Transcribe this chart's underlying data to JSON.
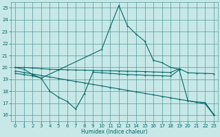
{
  "bg_color": "#c8e8e8",
  "grid_color": "#4d9999",
  "line_color": "#006666",
  "xlabel": "Humidex (Indice chaleur)",
  "xlim": [
    -0.5,
    23.5
  ],
  "ylim": [
    15.5,
    25.5
  ],
  "yticks": [
    16,
    17,
    18,
    19,
    20,
    21,
    22,
    23,
    24,
    25
  ],
  "xticks": [
    0,
    1,
    2,
    3,
    4,
    5,
    6,
    7,
    8,
    9,
    10,
    11,
    12,
    13,
    14,
    15,
    16,
    17,
    18,
    19,
    20,
    21,
    22,
    23
  ],
  "line1_x": [
    0,
    1,
    2,
    3,
    10,
    11,
    12,
    13,
    14,
    15,
    16,
    17,
    18,
    19
  ],
  "line1_y": [
    20.0,
    19.85,
    19.4,
    19.1,
    21.5,
    23.4,
    25.2,
    23.5,
    22.8,
    22.2,
    20.6,
    20.4,
    20.0,
    19.85
  ],
  "line2_x": [
    0,
    1,
    2,
    3,
    4,
    5,
    6,
    7,
    8,
    9,
    10,
    11,
    12,
    13,
    14,
    15,
    16,
    17,
    18,
    19,
    20,
    21,
    22,
    23
  ],
  "line2_y": [
    20.0,
    20.0,
    19.95,
    19.9,
    19.85,
    19.82,
    19.8,
    19.78,
    19.77,
    19.75,
    19.73,
    19.72,
    19.7,
    19.68,
    19.67,
    19.65,
    19.62,
    19.6,
    19.58,
    19.9,
    19.55,
    19.52,
    19.5,
    19.47
  ],
  "line3_x": [
    0,
    1,
    2,
    3,
    4,
    5,
    6,
    7,
    8,
    9,
    10,
    11,
    12,
    13,
    14,
    15,
    16,
    17,
    18,
    19,
    20,
    21,
    22,
    23
  ],
  "line3_y": [
    19.5,
    19.4,
    19.3,
    19.1,
    18.0,
    17.5,
    17.15,
    16.5,
    17.8,
    19.6,
    19.55,
    19.5,
    19.45,
    19.4,
    19.38,
    19.35,
    19.32,
    19.3,
    19.27,
    19.8,
    17.2,
    17.1,
    17.05,
    16.05
  ],
  "line4_x": [
    0,
    1,
    2,
    3,
    4,
    5,
    6,
    7,
    8,
    9,
    10,
    11,
    12,
    13,
    14,
    15,
    16,
    17,
    18,
    19,
    20,
    21,
    22,
    23
  ],
  "line4_y": [
    19.7,
    19.58,
    19.45,
    19.32,
    19.2,
    19.07,
    18.95,
    18.82,
    18.7,
    18.57,
    18.45,
    18.32,
    18.2,
    18.07,
    17.95,
    17.82,
    17.7,
    17.57,
    17.45,
    17.32,
    17.2,
    17.07,
    16.95,
    16.0
  ]
}
